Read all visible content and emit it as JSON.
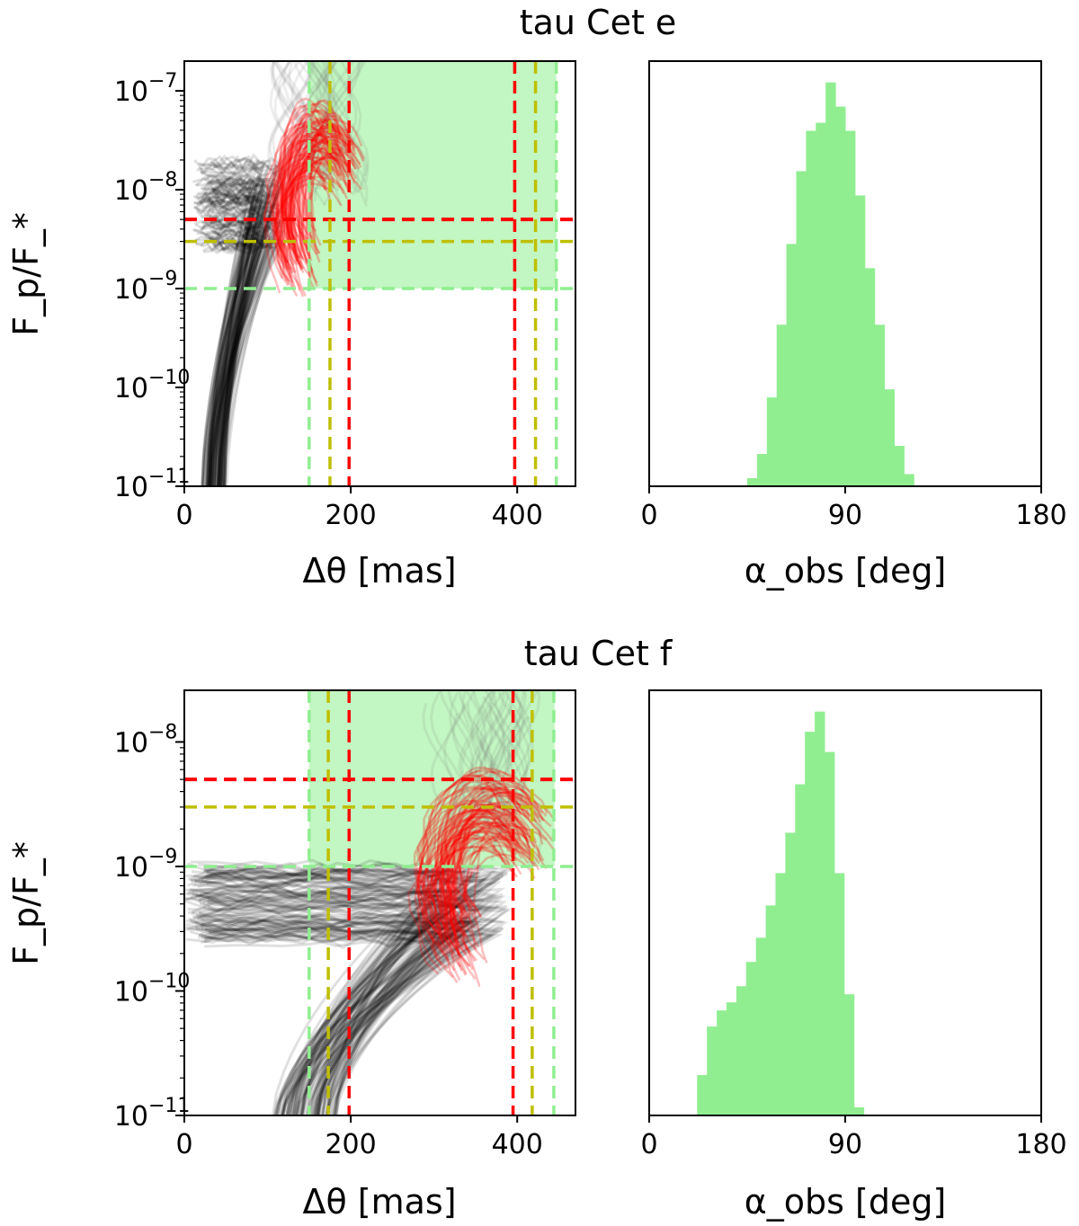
{
  "figure": {
    "type": "multi-panel"
  },
  "chart_data": [
    {
      "panel": "top-left",
      "type": "line",
      "title": "tau Cet e",
      "xlabel": "Δθ [mas]",
      "ylabel": "F_p/F_*",
      "xlim": [
        0,
        470
      ],
      "ylog": true,
      "ylim": [
        1e-11,
        2e-07
      ],
      "xticks": [
        0,
        200,
        400
      ],
      "yticks": [
        {
          "base": "10",
          "exp": "−7",
          "value": 1e-07
        },
        {
          "base": "10",
          "exp": "−8",
          "value": 1e-08
        },
        {
          "base": "10",
          "exp": "−9",
          "value": 1e-09
        },
        {
          "base": "10",
          "exp": "−10",
          "value": 1e-10
        },
        {
          "base": "10",
          "exp": "−11",
          "value": 1e-11
        }
      ],
      "shaded_region": {
        "x": [
          150,
          447
        ],
        "y_min": 1e-09,
        "color": "#90EE90"
      },
      "hlines": [
        {
          "y": 5e-09,
          "color": "#ff0000"
        },
        {
          "y": 3e-09,
          "color": "#bfbf00"
        },
        {
          "y": 1e-09,
          "color": "#90EE90"
        }
      ],
      "vlines": [
        {
          "x": 150,
          "color": "#90EE90"
        },
        {
          "x": 175,
          "color": "#bfbf00"
        },
        {
          "x": 198,
          "color": "#ff0000"
        },
        {
          "x": 397,
          "color": "#ff0000"
        },
        {
          "x": 422,
          "color": "#bfbf00"
        },
        {
          "x": 447,
          "color": "#90EE90"
        }
      ],
      "tracks": {
        "black_seed": 7,
        "red_seed": 11,
        "count": 110
      }
    },
    {
      "panel": "top-right",
      "type": "bar",
      "xlabel": "α_obs [deg]",
      "xlim": [
        0,
        180
      ],
      "xticks": [
        0,
        90,
        180
      ],
      "color": "#90EE90",
      "bin_width": 4.5,
      "bin_start": 45,
      "values": [
        2,
        8,
        22,
        40,
        60,
        78,
        88,
        90,
        100,
        94,
        88,
        72,
        54,
        40,
        24,
        10,
        3
      ]
    },
    {
      "panel": "bottom-left",
      "type": "line",
      "title": "tau Cet f",
      "xlabel": "Δθ [mas]",
      "ylabel": "F_p/F_*",
      "xlim": [
        0,
        470
      ],
      "ylog": true,
      "ylim": [
        1e-11,
        2.6e-08
      ],
      "xticks": [
        0,
        200,
        400
      ],
      "yticks": [
        {
          "base": "10",
          "exp": "−8",
          "value": 1e-08
        },
        {
          "base": "10",
          "exp": "−9",
          "value": 1e-09
        },
        {
          "base": "10",
          "exp": "−10",
          "value": 1e-10
        },
        {
          "base": "10",
          "exp": "−11",
          "value": 1e-11
        }
      ],
      "shaded_region": {
        "x": [
          150,
          445
        ],
        "y_min": 1e-09,
        "color": "#90EE90"
      },
      "hlines": [
        {
          "y": 5e-09,
          "color": "#ff0000"
        },
        {
          "y": 3e-09,
          "color": "#bfbf00"
        },
        {
          "y": 1e-09,
          "color": "#90EE90"
        }
      ],
      "vlines": [
        {
          "x": 150,
          "color": "#90EE90"
        },
        {
          "x": 173,
          "color": "#bfbf00"
        },
        {
          "x": 198,
          "color": "#ff0000"
        },
        {
          "x": 395,
          "color": "#ff0000"
        },
        {
          "x": 418,
          "color": "#bfbf00"
        },
        {
          "x": 444,
          "color": "#90EE90"
        }
      ],
      "tracks": {
        "black_seed": 23,
        "red_seed": 29,
        "count": 110
      }
    },
    {
      "panel": "bottom-right",
      "type": "bar",
      "xlabel": "α_obs [deg]",
      "xlim": [
        0,
        180
      ],
      "xticks": [
        0,
        90,
        180
      ],
      "color": "#90EE90",
      "bin_width": 4.5,
      "bin_start": 22,
      "values": [
        10,
        22,
        26,
        28,
        32,
        38,
        44,
        52,
        60,
        70,
        82,
        95,
        100,
        90,
        60,
        30,
        2
      ]
    }
  ]
}
